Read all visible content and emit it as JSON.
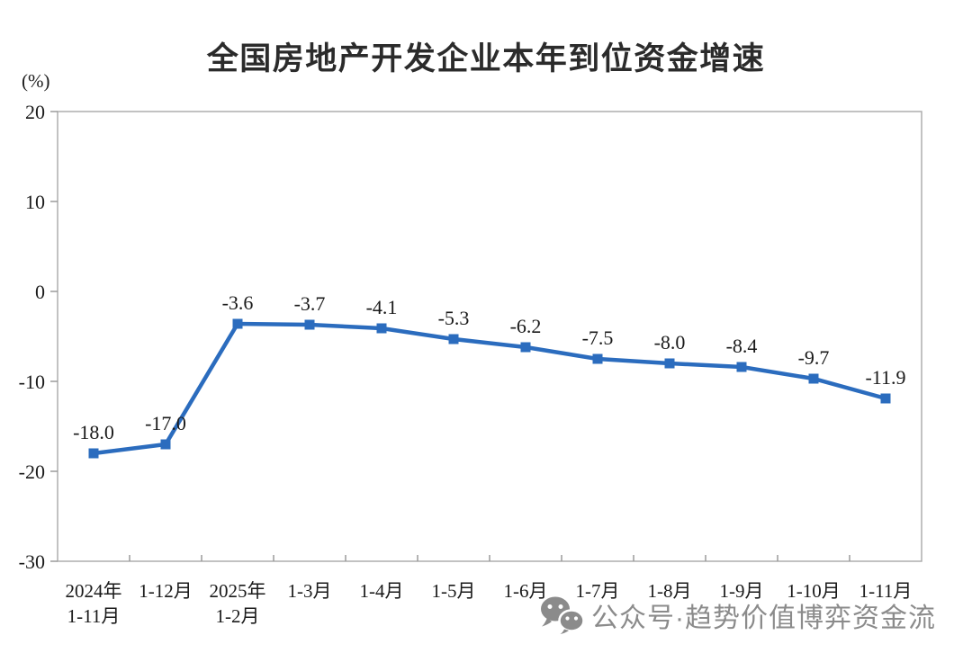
{
  "title": "全国房地产开发企业本年到位资金增速",
  "unit_label": "(%)",
  "watermark": {
    "icon": "wechat-icon",
    "text": "公众号·趋势价值博弈资金流",
    "color": "#8b8b8b"
  },
  "chart_data": {
    "type": "line",
    "title": "全国房地产开发企业本年到位资金增速",
    "ylabel": "(%)",
    "categories": [
      [
        "2024年",
        "1-11月"
      ],
      [
        "1-12月"
      ],
      [
        "2025年",
        "1-2月"
      ],
      [
        "1-3月"
      ],
      [
        "1-4月"
      ],
      [
        "1-5月"
      ],
      [
        "1-6月"
      ],
      [
        "1-7月"
      ],
      [
        "1-8月"
      ],
      [
        "1-9月"
      ],
      [
        "1-10月"
      ],
      [
        "1-11月"
      ]
    ],
    "values": [
      -18.0,
      -17.0,
      -3.6,
      -3.7,
      -4.1,
      -5.3,
      -6.2,
      -7.5,
      -8.0,
      -8.4,
      -9.7,
      -11.9
    ],
    "data_labels": [
      "-18.0",
      "-17.0",
      "-3.6",
      "-3.7",
      "-4.1",
      "-5.3",
      "-6.2",
      "-7.5",
      "-8.0",
      "-8.4",
      "-9.7",
      "-11.9"
    ],
    "ylim": [
      -30,
      20
    ],
    "yticks": [
      20,
      10,
      0,
      -10,
      -20,
      -30
    ],
    "grid": false,
    "legend": "none",
    "marker": "square",
    "line_color": "#2b6cbe",
    "marker_color": "#2b6cbe",
    "axis_color": "#adadad",
    "tick_color": "#9a9a9a",
    "label_color": "#1a1a1a"
  }
}
